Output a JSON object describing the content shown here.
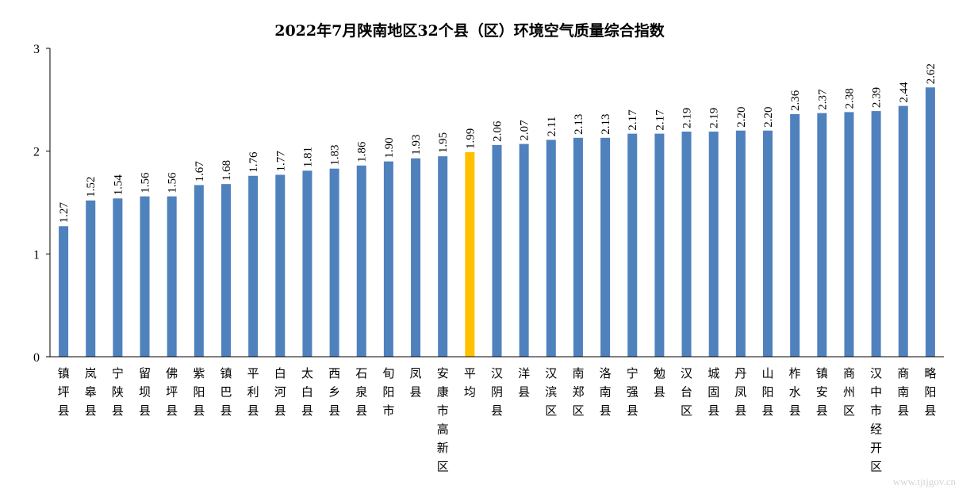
{
  "chart_data": {
    "type": "bar",
    "title": "2022年7月陕南地区32个县（区）环境空气质量综合指数",
    "xlabel": "",
    "ylabel": "",
    "ylim": [
      0,
      3
    ],
    "yticks": [
      "0",
      "1",
      "2",
      "3"
    ],
    "grid": false,
    "legend": "none",
    "categories": [
      "镇坪县",
      "岚皋县",
      "宁陕县",
      "留坝县",
      "佛坪县",
      "紫阳县",
      "镇巴县",
      "平利县",
      "白河县",
      "太白县",
      "西乡县",
      "石泉县",
      "旬阳市",
      "凤县",
      "安康市高新区",
      "平均",
      "汉阴县",
      "洋县",
      "汉滨区",
      "南郑区",
      "洛南县",
      "宁强县",
      "勉县",
      "汉台区",
      "城固县",
      "丹凤县",
      "山阳县",
      "柞水县",
      "镇安县",
      "商州区",
      "汉中市经开区",
      "商南县",
      "略阳县"
    ],
    "values": [
      1.27,
      1.52,
      1.54,
      1.56,
      1.56,
      1.67,
      1.68,
      1.76,
      1.77,
      1.81,
      1.83,
      1.86,
      1.9,
      1.93,
      1.95,
      1.99,
      2.06,
      2.07,
      2.11,
      2.13,
      2.13,
      2.17,
      2.17,
      2.19,
      2.19,
      2.2,
      2.2,
      2.36,
      2.37,
      2.38,
      2.39,
      2.44,
      2.62
    ],
    "value_labels": [
      "1.27",
      "1.52",
      "1.54",
      "1.56",
      "1.56",
      "1.67",
      "1.68",
      "1.76",
      "1.77",
      "1.81",
      "1.83",
      "1.86",
      "1.90",
      "1.93",
      "1.95",
      "1.99",
      "2.06",
      "2.07",
      "2.11",
      "2.13",
      "2.13",
      "2.17",
      "2.17",
      "2.19",
      "2.19",
      "2.20",
      "2.20",
      "2.36",
      "2.37",
      "2.38",
      "2.39",
      "2.44",
      "2.62"
    ],
    "highlight_category": "平均",
    "colors": {
      "bar": "#4f81bd",
      "highlight": "#ffc000",
      "axis": "#000000"
    }
  },
  "watermark": "www.tjtjgov.cn"
}
